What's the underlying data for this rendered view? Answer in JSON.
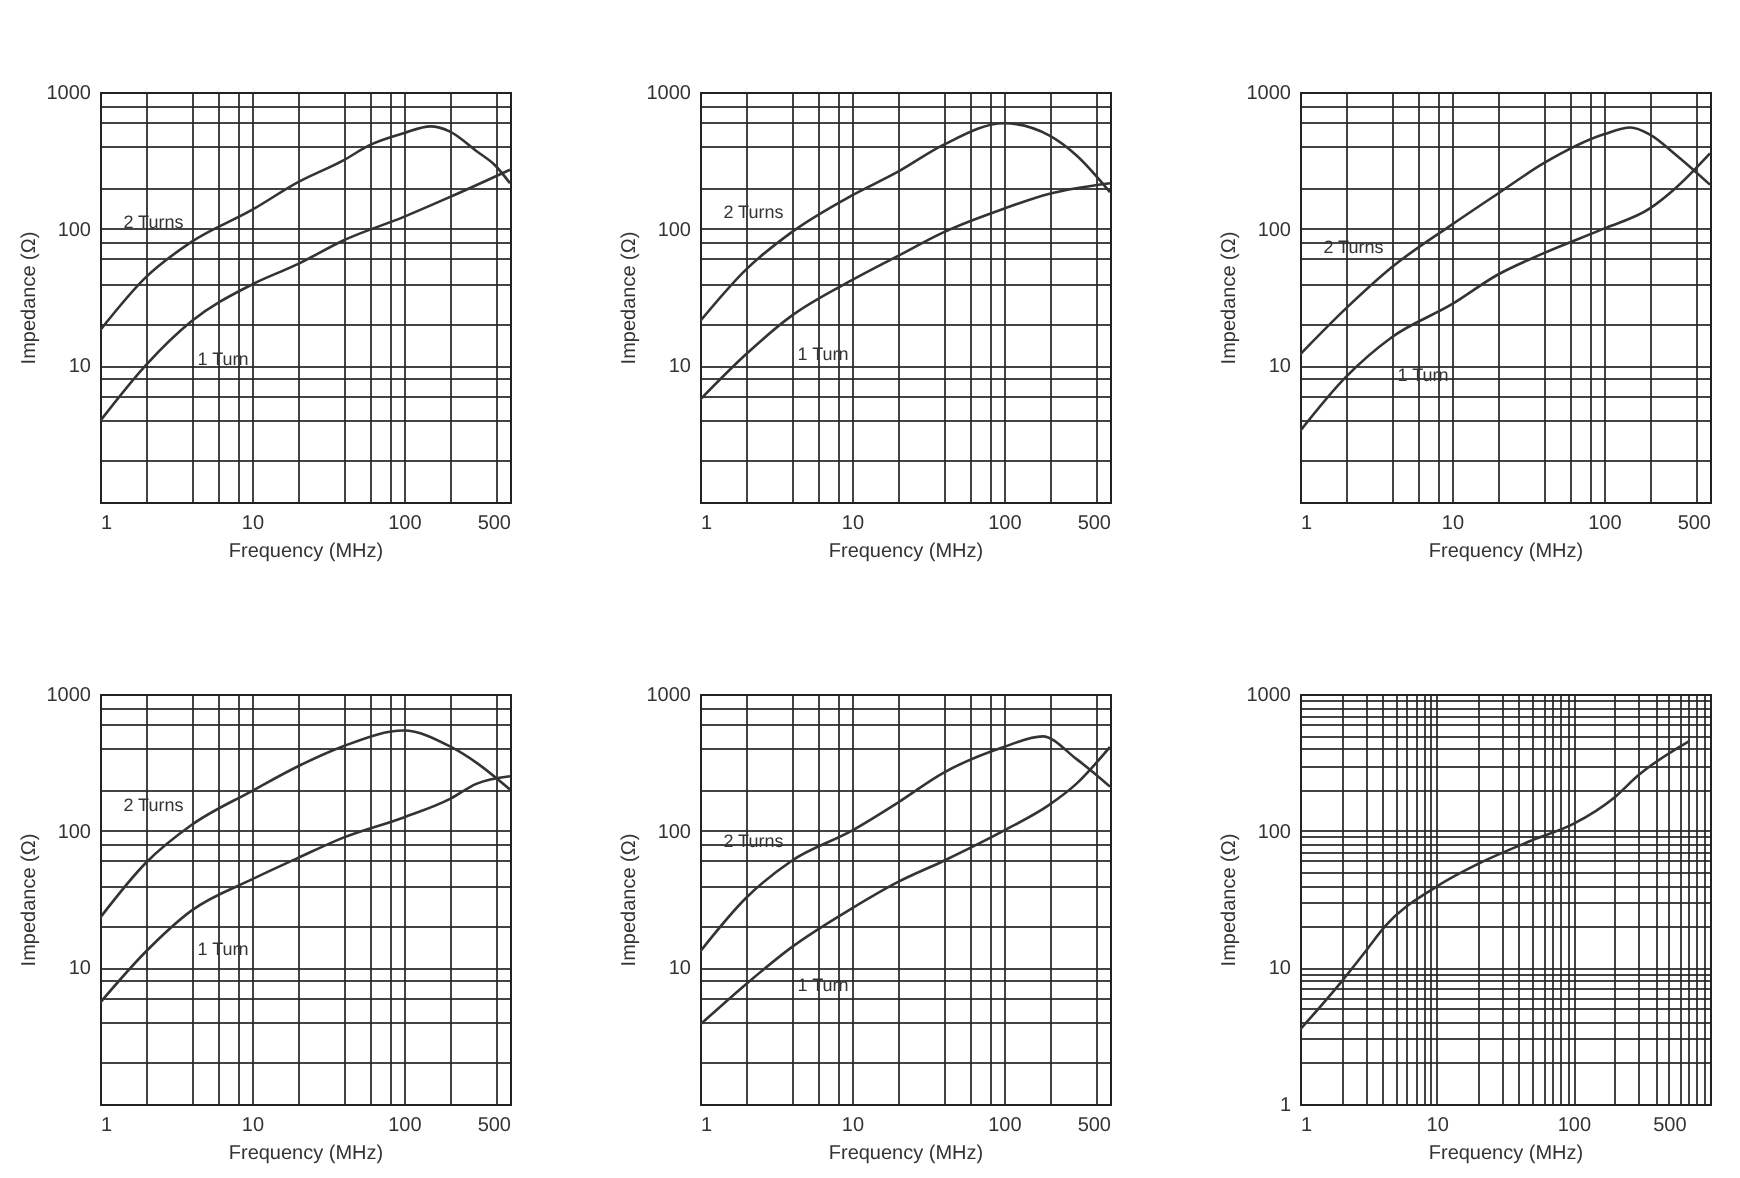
{
  "chart_data": [
    {
      "type": "line",
      "xlabel": "Frequency (MHz)",
      "ylabel": "Impedance (Ω)",
      "log": "xy",
      "grid": true,
      "xlim": [
        1,
        500
      ],
      "ylim": [
        1,
        1000
      ],
      "xticks": [
        1,
        {
          "value": 2,
          "label": null
        },
        {
          "value": 4,
          "label": null
        },
        {
          "value": 6,
          "label": null
        },
        {
          "value": 8,
          "label": null
        },
        10,
        {
          "value": 20,
          "label": null
        },
        {
          "value": 40,
          "label": null
        },
        {
          "value": 60,
          "label": null
        },
        {
          "value": 80,
          "label": null
        },
        100,
        {
          "value": 200,
          "label": null
        },
        {
          "value": 400,
          "label": null
        },
        500
      ],
      "yticks": [
        {
          "value": 2,
          "label": null
        },
        {
          "value": 4,
          "label": null
        },
        {
          "value": 6,
          "label": null
        },
        {
          "value": 8,
          "label": null
        },
        10,
        {
          "value": 20,
          "label": null
        },
        {
          "value": 40,
          "label": null
        },
        {
          "value": 60,
          "label": null
        },
        {
          "value": 80,
          "label": null
        },
        100,
        {
          "value": 200,
          "label": null
        },
        {
          "value": 400,
          "label": null
        },
        {
          "value": 600,
          "label": null
        },
        {
          "value": 800,
          "label": null
        },
        1000
      ],
      "series": [
        {
          "name": "2 Turns",
          "color": "#333333",
          "x": [
            1,
            2,
            4,
            10,
            20,
            40,
            60,
            100,
            150,
            200,
            300,
            400,
            500
          ],
          "values": [
            18,
            44,
            80,
            137,
            218,
            316,
            410,
            500,
            560,
            515,
            370,
            290,
            215
          ]
        },
        {
          "name": "1 Turn",
          "color": "#333333",
          "x": [
            1,
            2,
            4,
            10,
            20,
            40,
            100,
            200,
            500
          ],
          "values": [
            3.9,
            10,
            21,
            39,
            55,
            82,
            122,
            170,
            270
          ]
        }
      ]
    },
    {
      "type": "line",
      "xlabel": "Frequency (MHz)",
      "ylabel": "Impedance (Ω)",
      "log": "xy",
      "grid": true,
      "xlim": [
        1,
        500
      ],
      "ylim": [
        1,
        1000
      ],
      "xticks": [
        1,
        {
          "value": 2,
          "label": null
        },
        {
          "value": 4,
          "label": null
        },
        {
          "value": 6,
          "label": null
        },
        {
          "value": 8,
          "label": null
        },
        10,
        {
          "value": 20,
          "label": null
        },
        {
          "value": 40,
          "label": null
        },
        {
          "value": 60,
          "label": null
        },
        {
          "value": 80,
          "label": null
        },
        100,
        {
          "value": 200,
          "label": null
        },
        {
          "value": 400,
          "label": null
        },
        500
      ],
      "yticks": [
        {
          "value": 2,
          "label": null
        },
        {
          "value": 4,
          "label": null
        },
        {
          "value": 6,
          "label": null
        },
        {
          "value": 8,
          "label": null
        },
        10,
        {
          "value": 20,
          "label": null
        },
        {
          "value": 40,
          "label": null
        },
        {
          "value": 60,
          "label": null
        },
        {
          "value": 80,
          "label": null
        },
        100,
        {
          "value": 200,
          "label": null
        },
        {
          "value": 400,
          "label": null
        },
        {
          "value": 600,
          "label": null
        },
        {
          "value": 800,
          "label": null
        },
        1000
      ],
      "series": [
        {
          "name": "2 Turns",
          "color": "#333333",
          "x": [
            1,
            2,
            4,
            10,
            20,
            40,
            100,
            200,
            300,
            500
          ],
          "values": [
            21,
            50,
            94,
            175,
            260,
            410,
            590,
            480,
            345,
            185
          ]
        },
        {
          "name": "1 Turn",
          "color": "#333333",
          "x": [
            1,
            2,
            4,
            10,
            20,
            40,
            100,
            200,
            500
          ],
          "values": [
            5.6,
            12,
            23,
            42,
            63,
            94,
            140,
            180,
            215
          ]
        }
      ]
    },
    {
      "type": "line",
      "xlabel": "Frequency (MHz)",
      "ylabel": "Impedance (Ω)",
      "log": "xy",
      "grid": true,
      "xlim": [
        1,
        500
      ],
      "ylim": [
        1,
        1000
      ],
      "xticks": [
        1,
        {
          "value": 2,
          "label": null
        },
        {
          "value": 4,
          "label": null
        },
        {
          "value": 6,
          "label": null
        },
        {
          "value": 8,
          "label": null
        },
        10,
        {
          "value": 20,
          "label": null
        },
        {
          "value": 40,
          "label": null
        },
        {
          "value": 60,
          "label": null
        },
        {
          "value": 80,
          "label": null
        },
        100,
        {
          "value": 200,
          "label": null
        },
        {
          "value": 400,
          "label": null
        },
        500
      ],
      "yticks": [
        {
          "value": 2,
          "label": null
        },
        {
          "value": 4,
          "label": null
        },
        {
          "value": 6,
          "label": null
        },
        {
          "value": 8,
          "label": null
        },
        10,
        {
          "value": 20,
          "label": null
        },
        {
          "value": 40,
          "label": null
        },
        {
          "value": 60,
          "label": null
        },
        {
          "value": 80,
          "label": null
        },
        100,
        {
          "value": 200,
          "label": null
        },
        {
          "value": 400,
          "label": null
        },
        {
          "value": 600,
          "label": null
        },
        {
          "value": 800,
          "label": null
        },
        1000
      ],
      "series": [
        {
          "name": "2 Turns",
          "color": "#333333",
          "x": [
            1,
            2,
            4,
            10,
            20,
            40,
            100,
            150,
            200,
            300,
            500
          ],
          "values": [
            12,
            26,
            52,
            107,
            180,
            300,
            490,
            550,
            490,
            345,
            210
          ]
        },
        {
          "name": "1 Turn",
          "color": "#333333",
          "x": [
            1,
            2,
            4,
            10,
            20,
            40,
            100,
            200,
            300,
            500
          ],
          "values": [
            3.3,
            8.2,
            16,
            28,
            46,
            66,
            100,
            140,
            200,
            355
          ]
        }
      ]
    },
    {
      "type": "line",
      "xlabel": "Frequency (MHz)",
      "ylabel": "Impedance (Ω)",
      "log": "xy",
      "grid": true,
      "xlim": [
        1,
        500
      ],
      "ylim": [
        1,
        1000
      ],
      "xticks": [
        1,
        {
          "value": 2,
          "label": null
        },
        {
          "value": 4,
          "label": null
        },
        {
          "value": 6,
          "label": null
        },
        {
          "value": 8,
          "label": null
        },
        10,
        {
          "value": 20,
          "label": null
        },
        {
          "value": 40,
          "label": null
        },
        {
          "value": 60,
          "label": null
        },
        {
          "value": 80,
          "label": null
        },
        100,
        {
          "value": 200,
          "label": null
        },
        {
          "value": 400,
          "label": null
        },
        500
      ],
      "yticks": [
        {
          "value": 2,
          "label": null
        },
        {
          "value": 4,
          "label": null
        },
        {
          "value": 6,
          "label": null
        },
        {
          "value": 8,
          "label": null
        },
        10,
        {
          "value": 20,
          "label": null
        },
        {
          "value": 40,
          "label": null
        },
        {
          "value": 60,
          "label": null
        },
        {
          "value": 80,
          "label": null
        },
        100,
        {
          "value": 200,
          "label": null
        },
        {
          "value": 400,
          "label": null
        },
        {
          "value": 600,
          "label": null
        },
        {
          "value": 800,
          "label": null
        },
        1000
      ],
      "series": [
        {
          "name": "2 Turns",
          "color": "#333333",
          "x": [
            1,
            2,
            4,
            10,
            20,
            40,
            100,
            200,
            300,
            500
          ],
          "values": [
            23,
            58,
            110,
            195,
            295,
            415,
            540,
            415,
            315,
            200
          ]
        },
        {
          "name": "1 Turn",
          "color": "#333333",
          "x": [
            1,
            2,
            4,
            10,
            20,
            40,
            100,
            200,
            300,
            500
          ],
          "values": [
            5.5,
            13,
            26,
            44,
            63,
            89,
            125,
            170,
            220,
            250
          ]
        }
      ]
    },
    {
      "type": "line",
      "xlabel": "Frequency (MHz)",
      "ylabel": "Impedance (Ω)",
      "log": "xy",
      "grid": true,
      "xlim": [
        1,
        500
      ],
      "ylim": [
        1,
        1000
      ],
      "xticks": [
        1,
        {
          "value": 2,
          "label": null
        },
        {
          "value": 4,
          "label": null
        },
        {
          "value": 6,
          "label": null
        },
        {
          "value": 8,
          "label": null
        },
        10,
        {
          "value": 20,
          "label": null
        },
        {
          "value": 40,
          "label": null
        },
        {
          "value": 60,
          "label": null
        },
        {
          "value": 80,
          "label": null
        },
        100,
        {
          "value": 200,
          "label": null
        },
        {
          "value": 400,
          "label": null
        },
        500
      ],
      "yticks": [
        {
          "value": 2,
          "label": null
        },
        {
          "value": 4,
          "label": null
        },
        {
          "value": 6,
          "label": null
        },
        {
          "value": 8,
          "label": null
        },
        10,
        {
          "value": 20,
          "label": null
        },
        {
          "value": 40,
          "label": null
        },
        {
          "value": 60,
          "label": null
        },
        {
          "value": 80,
          "label": null
        },
        100,
        {
          "value": 200,
          "label": null
        },
        {
          "value": 400,
          "label": null
        },
        {
          "value": 600,
          "label": null
        },
        {
          "value": 800,
          "label": null
        },
        1000
      ],
      "series": [
        {
          "name": "2 Turns",
          "color": "#333333",
          "x": [
            1,
            2,
            4,
            10,
            20,
            40,
            100,
            180,
            300,
            500
          ],
          "values": [
            13,
            32,
            60,
            100,
            160,
            265,
            410,
            490,
            335,
            210
          ]
        },
        {
          "name": "1 Turn",
          "color": "#333333",
          "x": [
            1,
            2,
            4,
            10,
            20,
            40,
            100,
            200,
            300,
            500
          ],
          "values": [
            3.8,
            7.5,
            14,
            27,
            42,
            60,
            100,
            155,
            220,
            410
          ]
        }
      ]
    },
    {
      "type": "line",
      "xlabel": "Frequency (MHz)",
      "ylabel": "Impedance (Ω)",
      "log": "xy",
      "grid": true,
      "xlim": [
        1,
        1000
      ],
      "ylim": [
        1,
        1000
      ],
      "xticks": [
        1,
        {
          "value": 2,
          "label": null
        },
        {
          "value": 3,
          "label": null
        },
        {
          "value": 4,
          "label": null
        },
        {
          "value": 5,
          "label": null
        },
        {
          "value": 6,
          "label": null
        },
        {
          "value": 7,
          "label": null
        },
        {
          "value": 8,
          "label": null
        },
        {
          "value": 9,
          "label": null
        },
        10,
        {
          "value": 20,
          "label": null
        },
        {
          "value": 30,
          "label": null
        },
        {
          "value": 40,
          "label": null
        },
        {
          "value": 50,
          "label": null
        },
        {
          "value": 60,
          "label": null
        },
        {
          "value": 70,
          "label": null
        },
        {
          "value": 80,
          "label": null
        },
        {
          "value": 90,
          "label": null
        },
        100,
        {
          "value": 200,
          "label": null
        },
        {
          "value": 300,
          "label": null
        },
        {
          "value": 400,
          "label": null
        },
        500,
        {
          "value": 600,
          "label": null
        },
        {
          "value": 700,
          "label": null
        },
        {
          "value": 800,
          "label": null
        },
        {
          "value": 900,
          "label": null
        }
      ],
      "yticks": [
        1,
        {
          "value": 2,
          "label": null
        },
        {
          "value": 3,
          "label": null
        },
        {
          "value": 4,
          "label": null
        },
        {
          "value": 5,
          "label": null
        },
        {
          "value": 6,
          "label": null
        },
        {
          "value": 7,
          "label": null
        },
        {
          "value": 8,
          "label": null
        },
        {
          "value": 9,
          "label": null
        },
        10,
        {
          "value": 20,
          "label": null
        },
        {
          "value": 30,
          "label": null
        },
        {
          "value": 40,
          "label": null
        },
        {
          "value": 50,
          "label": null
        },
        {
          "value": 60,
          "label": null
        },
        {
          "value": 70,
          "label": null
        },
        {
          "value": 80,
          "label": null
        },
        {
          "value": 90,
          "label": null
        },
        100,
        {
          "value": 200,
          "label": null
        },
        {
          "value": 300,
          "label": null
        },
        {
          "value": 400,
          "label": null
        },
        {
          "value": 500,
          "label": null
        },
        {
          "value": 600,
          "label": null
        },
        {
          "value": 700,
          "label": null
        },
        {
          "value": 800,
          "label": null
        },
        {
          "value": 900,
          "label": null
        },
        1000
      ],
      "series": [
        {
          "color": "#333333",
          "x": [
            1,
            2,
            3,
            4.2,
            10,
            20,
            50,
            100,
            200,
            300,
            700
          ],
          "values": [
            3.5,
            7.8,
            13,
            20,
            39,
            57,
            85,
            112,
            175,
            255,
            450
          ]
        }
      ]
    }
  ]
}
